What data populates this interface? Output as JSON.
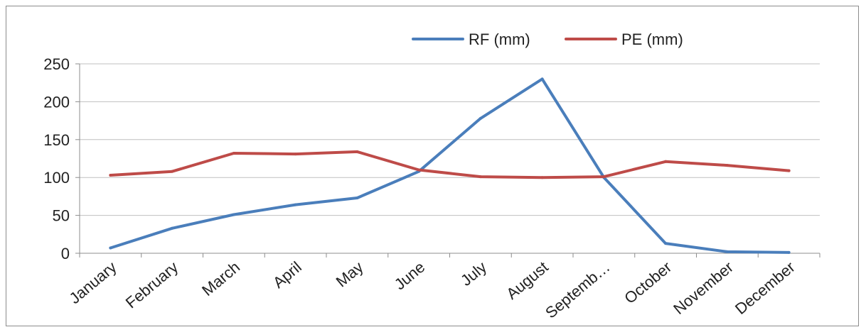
{
  "chart_data": {
    "type": "line",
    "categories": [
      "January",
      "February",
      "March",
      "April",
      "May",
      "June",
      "July",
      "August",
      "Septemb…",
      "October",
      "November",
      "December"
    ],
    "series": [
      {
        "name": "RF (mm)",
        "color": "#4a7ebb",
        "values": [
          7,
          33,
          51,
          64,
          73,
          108,
          178,
          230,
          100,
          13,
          2,
          1
        ]
      },
      {
        "name": "PE (mm)",
        "color": "#be4b48",
        "values": [
          103,
          108,
          132,
          131,
          134,
          110,
          101,
          100,
          101,
          121,
          116,
          109
        ]
      }
    ],
    "title": "",
    "xlabel": "",
    "ylabel": "",
    "ylim": [
      0,
      250
    ],
    "yticks": [
      0,
      50,
      100,
      150,
      200,
      250
    ],
    "grid": true,
    "legend_position": "top-right"
  }
}
